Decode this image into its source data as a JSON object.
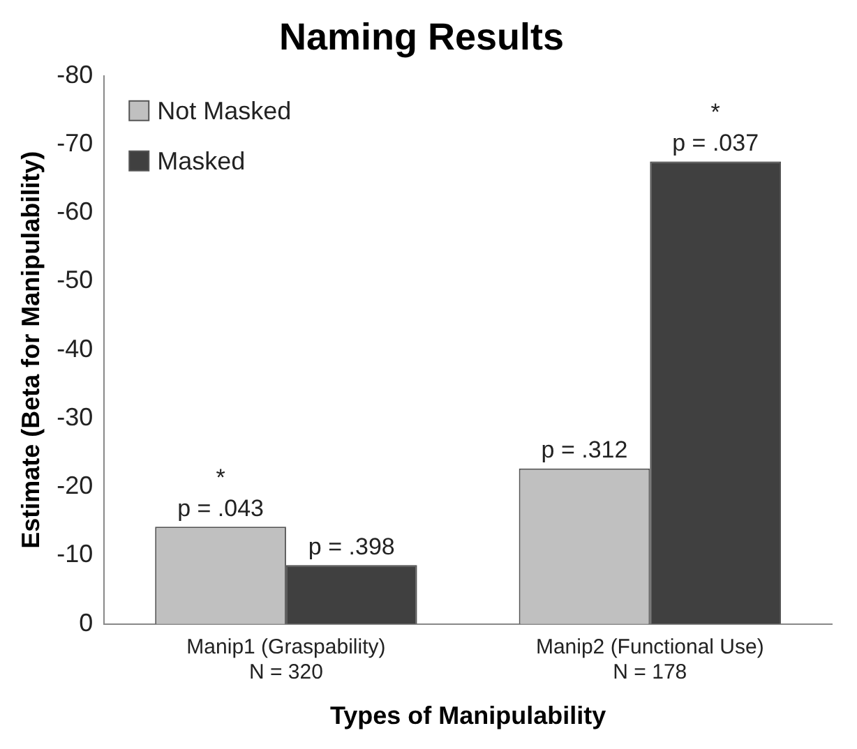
{
  "chart_data": {
    "type": "bar",
    "title": "Naming Results",
    "xlabel": "Types of Manipulability",
    "ylabel": "Estimate (Beta for Manipulability)",
    "categories": [
      "Manip1 (Graspability)\nN = 320",
      "Manip2 (Functional Use)\nN = 178"
    ],
    "series": [
      {
        "name": "Not Masked",
        "color": "#c0c0c0",
        "values": [
          -14.2,
          -22.7
        ]
      },
      {
        "name": "Masked",
        "color": "#404040",
        "values": [
          -8.6,
          -67.5
        ]
      }
    ],
    "ylim": [
      0,
      -80
    ],
    "yticks": [
      0,
      -10,
      -20,
      -30,
      -40,
      -50,
      -60,
      -70,
      -80
    ],
    "grid": false,
    "legend": "top left",
    "annotations": [
      {
        "text": "*",
        "x": "Manip1 (Graspability)\nN = 320",
        "y": -14.2
      },
      {
        "text": "p = .043",
        "x": "Manip1 (Graspability)\nN = 320",
        "y": -14.2
      },
      {
        "text": "p = .398",
        "x": "Manip1 (Graspability)\nN = 320",
        "y": -8.6
      },
      {
        "text": "p = .312",
        "x": "Manip2 (Functional Use)\nN = 178",
        "y": -22.7
      },
      {
        "text": "*",
        "x": "Manip2 (Functional Use)\nN = 178",
        "y": -67.5
      },
      {
        "text": "p = .037",
        "x": "Manip2 (Functional Use)\nN = 178",
        "y": -67.5
      }
    ]
  }
}
